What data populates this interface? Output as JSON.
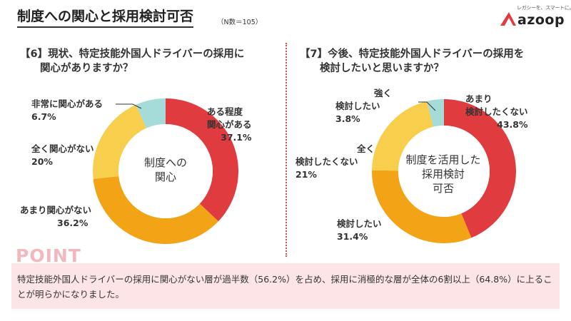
{
  "header": {
    "title": "制度への関心と採用検討可否",
    "note": "（N数＝105）",
    "logo_tagline": "レガシーを、スマートに。",
    "logo_text": "azoop"
  },
  "colors": {
    "accent_red": "#e03c3f",
    "orange": "#f2a416",
    "yellow": "#f7cf4d",
    "teal": "#a5dbd8",
    "point_bg": "#fde4e6"
  },
  "point": {
    "label": "POINT",
    "text": "特定技能外国人ドライバーの採用に関心がない層が過半数（56.2%）を占め、採用に消極的な層が全体の6割以上（64.8%）に上ることが明らかになりました。"
  },
  "chart_data": [
    {
      "type": "pie",
      "question": [
        "【6】現状、特定技能外国人ドライバーの採用に",
        "関心がありますか？"
      ],
      "center_label": [
        "制度への",
        "関心"
      ],
      "slices": [
        {
          "name_lines": [
            "ある程度",
            "関心がある"
          ],
          "value": 37.1,
          "label": "37.1%",
          "color": "#e03c3f"
        },
        {
          "name_lines": [
            "あまり関心がない"
          ],
          "value": 36.2,
          "label": "36.2%",
          "color": "#f2a416"
        },
        {
          "name_lines": [
            "全く関心がない"
          ],
          "value": 20,
          "label": "20%",
          "color": "#f7cf4d"
        },
        {
          "name_lines": [
            "非常に関心がある"
          ],
          "value": 6.7,
          "label": "6.7%",
          "color": "#a5dbd8"
        }
      ]
    },
    {
      "type": "pie",
      "question": [
        "【7】今後、特定技能外国人ドライバーの採用を",
        "検討したいと思いますか？"
      ],
      "center_label": [
        "制度を活用した",
        "採用検討",
        "可否"
      ],
      "slices": [
        {
          "name_lines": [
            "あまり",
            "検討したくない"
          ],
          "value": 43.8,
          "label": "43.8%",
          "color": "#e03c3f"
        },
        {
          "name_lines": [
            "検討したい"
          ],
          "value": 31.4,
          "label": "31.4%",
          "color": "#f2a416"
        },
        {
          "name_lines": [
            "全く",
            "検討したくない"
          ],
          "value": 21,
          "label": "21%",
          "color": "#f7cf4d"
        },
        {
          "name_lines": [
            "強く",
            "検討したい"
          ],
          "value": 3.8,
          "label": "3.8%",
          "color": "#a5dbd8"
        }
      ]
    }
  ]
}
